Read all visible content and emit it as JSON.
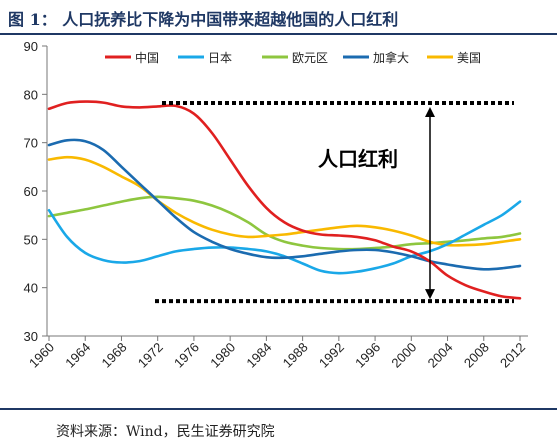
{
  "figure": {
    "title": "图 1：   人口抚养比下降为中国带来超越他国的人口红利",
    "source": "资料来源：Wind，民生证券研究院"
  },
  "chart_data": {
    "type": "line",
    "title": "",
    "xlabel": "",
    "ylabel": "",
    "xlim": [
      1960,
      2013
    ],
    "ylim": [
      30,
      90
    ],
    "yticks": [
      30,
      40,
      50,
      60,
      70,
      80,
      90
    ],
    "xticks": [
      1960,
      1964,
      1968,
      1972,
      1976,
      1980,
      1984,
      1988,
      1992,
      1996,
      2000,
      2004,
      2008,
      2012
    ],
    "grid": false,
    "legend_position": "top",
    "annotation": "人口红利",
    "reference_lines": [
      78,
      37
    ],
    "arrow": {
      "x": 2002,
      "from": 78,
      "to": 37
    },
    "x": [
      1960,
      1962,
      1964,
      1966,
      1968,
      1970,
      1972,
      1974,
      1976,
      1978,
      1980,
      1982,
      1984,
      1986,
      1988,
      1990,
      1992,
      1994,
      1996,
      1998,
      2000,
      2002,
      2004,
      2006,
      2008,
      2010,
      2012
    ],
    "series": [
      {
        "name": "中国",
        "color": "#e02020",
        "values": [
          77.0,
          78.2,
          78.5,
          78.3,
          77.5,
          77.3,
          77.5,
          77.6,
          76.0,
          72.0,
          66.5,
          61.0,
          56.5,
          53.5,
          51.8,
          51.0,
          50.8,
          50.5,
          49.8,
          48.5,
          47.5,
          45.5,
          42.5,
          40.5,
          39.2,
          38.2,
          37.8
        ]
      },
      {
        "name": "日本",
        "color": "#1aa8e8",
        "values": [
          56.0,
          50.5,
          47.2,
          45.7,
          45.2,
          45.5,
          46.5,
          47.5,
          48.0,
          48.3,
          48.3,
          48.0,
          47.5,
          46.5,
          45.0,
          43.5,
          43.0,
          43.3,
          44.0,
          45.0,
          46.5,
          47.5,
          49.0,
          51.0,
          53.0,
          55.0,
          57.8
        ]
      },
      {
        "name": "欧元区",
        "color": "#8ec63f",
        "values": [
          54.8,
          55.5,
          56.2,
          57.0,
          57.8,
          58.5,
          58.8,
          58.5,
          58.0,
          57.0,
          55.5,
          53.5,
          51.0,
          49.5,
          48.7,
          48.2,
          48.0,
          48.0,
          48.2,
          48.5,
          49.0,
          49.2,
          49.5,
          49.8,
          50.2,
          50.5,
          51.2
        ]
      },
      {
        "name": "加拿大",
        "color": "#1b6bb0",
        "values": [
          69.5,
          70.5,
          70.3,
          68.5,
          65.0,
          61.5,
          58.0,
          54.5,
          51.5,
          49.5,
          48.0,
          47.0,
          46.3,
          46.2,
          46.5,
          47.0,
          47.5,
          47.8,
          47.8,
          47.3,
          46.5,
          45.5,
          44.8,
          44.2,
          43.8,
          44.0,
          44.5
        ]
      },
      {
        "name": "美国",
        "color": "#f9b900",
        "values": [
          66.5,
          67.0,
          66.5,
          65.0,
          63.0,
          61.0,
          58.0,
          55.5,
          53.5,
          52.0,
          51.0,
          50.5,
          50.7,
          51.0,
          51.5,
          52.0,
          52.5,
          52.8,
          52.5,
          51.8,
          50.8,
          49.5,
          48.8,
          48.8,
          49.0,
          49.5,
          50.0
        ]
      }
    ]
  }
}
